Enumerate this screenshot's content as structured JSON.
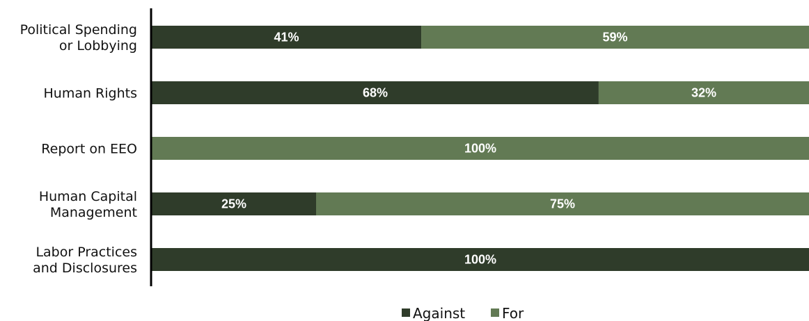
{
  "chart_data": {
    "type": "bar",
    "orientation": "horizontal",
    "stacked": true,
    "categories": [
      [
        "Political Spending",
        "or Lobbying"
      ],
      [
        "Human Rights"
      ],
      [
        "Report on EEO"
      ],
      [
        "Human Capital",
        "Management"
      ],
      [
        "Labor Practices",
        "and Disclosures"
      ]
    ],
    "series": [
      {
        "name": "Against",
        "color": "#2f3c2a",
        "values": [
          41,
          68,
          0,
          25,
          100
        ],
        "labels": [
          "41%",
          "68%",
          "",
          "25%",
          "100%"
        ]
      },
      {
        "name": "For",
        "color": "#627a54",
        "values": [
          59,
          32,
          100,
          75,
          0
        ],
        "labels": [
          "59%",
          "32%",
          "100%",
          "75%",
          ""
        ]
      }
    ],
    "xlim": [
      0,
      100
    ],
    "grid": false,
    "legend_position": "bottom-center",
    "title": "",
    "xlabel": "",
    "ylabel": ""
  }
}
